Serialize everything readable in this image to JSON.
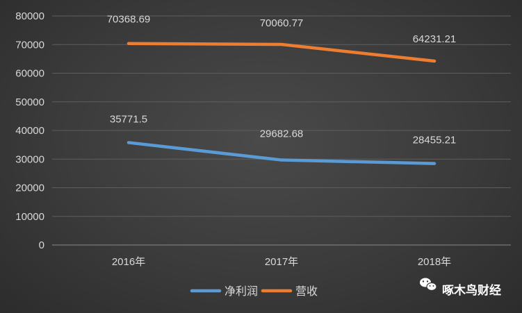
{
  "chart_data": {
    "type": "line",
    "categories": [
      "2016年",
      "2017年",
      "2018年"
    ],
    "series": [
      {
        "name": "净利润",
        "values": [
          35771.5,
          29682.68,
          28455.21
        ],
        "color": "#5b9bd5"
      },
      {
        "name": "营收",
        "values": [
          70368.69,
          70060.77,
          64231.21
        ],
        "color": "#ed7d31"
      }
    ],
    "data_labels": {
      "净利润": [
        "35771.5",
        "29682.68",
        "28455.21"
      ],
      "营收": [
        "70368.69",
        "70060.77",
        "64231.21"
      ]
    },
    "ylim": [
      0,
      80000
    ],
    "yticks": [
      0,
      10000,
      20000,
      30000,
      40000,
      50000,
      60000,
      70000,
      80000
    ],
    "grid": true,
    "legend": "bottom-center"
  },
  "watermark": {
    "text": "啄木鸟财经",
    "icon": "wechat-icon"
  }
}
